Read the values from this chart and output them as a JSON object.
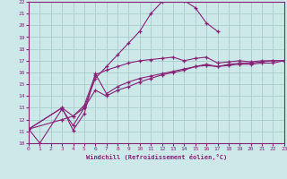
{
  "bg_color": "#cce8e8",
  "grid_color": "#aacccc",
  "line_color": "#882277",
  "xlabel": "Windchill (Refroidissement éolien,°C)",
  "xlabel_color": "#882277",
  "tick_color": "#882277",
  "xmin": 0,
  "xmax": 23,
  "ymin": 10,
  "ymax": 22,
  "line1_x": [
    0,
    1,
    3,
    4,
    5,
    6,
    7,
    8,
    9,
    10,
    11,
    12,
    13,
    14,
    15,
    16,
    17
  ],
  "line1_y": [
    11.2,
    10.0,
    12.9,
    11.5,
    13.0,
    15.5,
    16.5,
    17.5,
    18.5,
    19.5,
    21.0,
    22.0,
    22.2,
    22.1,
    21.5,
    20.2,
    19.5
  ],
  "line2_x": [
    0,
    3,
    4,
    5,
    6,
    7,
    8,
    9,
    10,
    11,
    12,
    13,
    14,
    15,
    16,
    17,
    18,
    19,
    20,
    21,
    22,
    23
  ],
  "line2_y": [
    11.2,
    13.0,
    12.3,
    13.2,
    15.8,
    16.2,
    16.5,
    16.8,
    17.0,
    17.1,
    17.2,
    17.3,
    17.0,
    17.2,
    17.3,
    16.8,
    16.9,
    17.0,
    16.9,
    17.0,
    17.0,
    17.0
  ],
  "line3_x": [
    0,
    3,
    4,
    5,
    6,
    7,
    8,
    9,
    10,
    11,
    12,
    13,
    14,
    15,
    16,
    17,
    18,
    19,
    20,
    21,
    22,
    23
  ],
  "line3_y": [
    11.2,
    13.0,
    11.1,
    12.5,
    15.9,
    14.2,
    14.8,
    15.2,
    15.5,
    15.7,
    15.9,
    16.1,
    16.3,
    16.5,
    16.6,
    16.5,
    16.6,
    16.7,
    16.7,
    16.8,
    16.8,
    17.0
  ],
  "line4_x": [
    0,
    3,
    4,
    5,
    6,
    7,
    8,
    9,
    10,
    11,
    12,
    13,
    14,
    15,
    16,
    17,
    18,
    19,
    20,
    21,
    22,
    23
  ],
  "line4_y": [
    11.2,
    12.0,
    12.3,
    13.0,
    14.5,
    14.0,
    14.5,
    14.8,
    15.2,
    15.5,
    15.8,
    16.0,
    16.2,
    16.5,
    16.7,
    16.5,
    16.7,
    16.8,
    16.8,
    16.9,
    17.0,
    17.0
  ]
}
